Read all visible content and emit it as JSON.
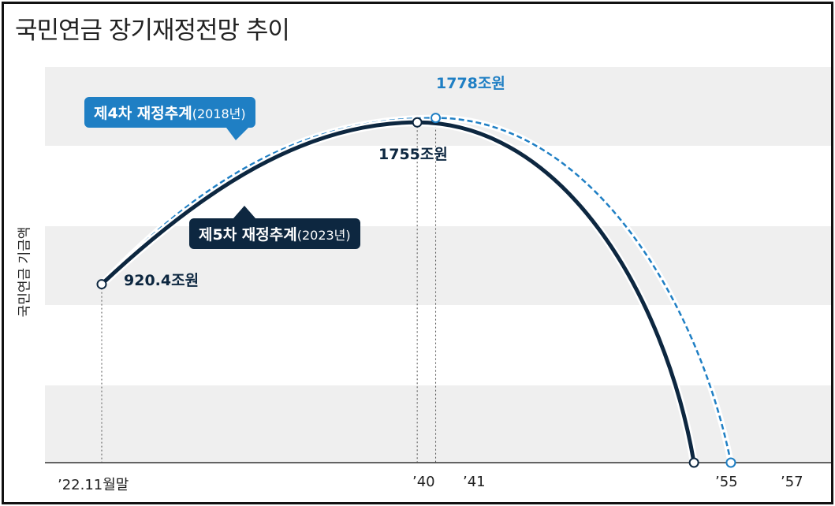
{
  "chart_data": {
    "type": "line",
    "title": "국민연금 장기재정전망 추이",
    "ylabel": "국민연금 기금액",
    "x_tick_labels": [
      "’22.11월말",
      "’40",
      "’41",
      "’55",
      "’57"
    ],
    "series": [
      {
        "name": "제4차 재정추계",
        "name_year": "(2018년)",
        "color": "#1f7fc4",
        "style": "dashed",
        "points": [
          {
            "x": 2041,
            "y": 1778,
            "label": "1778조원"
          },
          {
            "x": 2057,
            "y": 0
          }
        ]
      },
      {
        "name": "제5차 재정추계",
        "name_year": "(2023년)",
        "color": "#0d2740",
        "style": "solid",
        "points": [
          {
            "x": 2022.9,
            "y": 920.4,
            "label": "920.4조원"
          },
          {
            "x": 2040,
            "y": 1755,
            "label": "1755조원"
          },
          {
            "x": 2055,
            "y": 0
          }
        ]
      }
    ],
    "grid": "horizontal-bands"
  }
}
